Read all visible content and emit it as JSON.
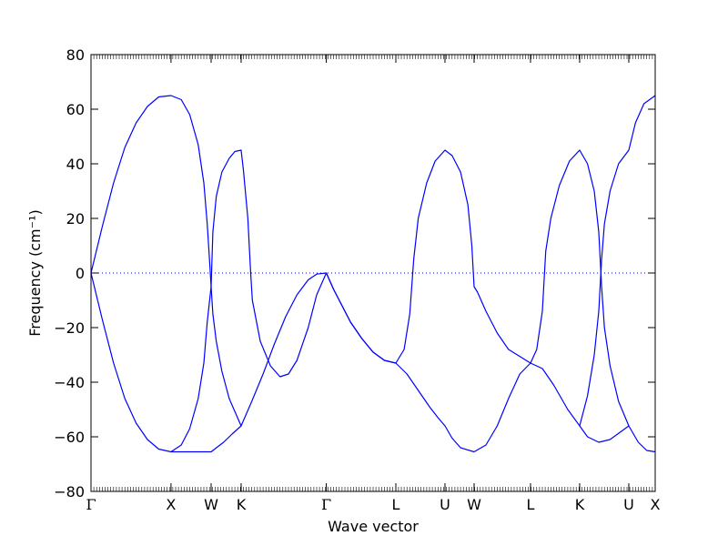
{
  "chart_data": {
    "type": "line",
    "title": "",
    "xlabel": "Wave vector",
    "ylabel": "Frequency (cm⁻¹)",
    "ylim": [
      -80,
      80
    ],
    "yticks": [
      -80,
      -60,
      -40,
      -20,
      0,
      20,
      40,
      60,
      80
    ],
    "ytick_labels": [
      "−80",
      "−60",
      "−40",
      "−20",
      "0",
      "20",
      "40",
      "60",
      "80"
    ],
    "xlim": [
      0,
      1
    ],
    "grid": false,
    "legend": "none",
    "line_color": "#0000ff",
    "zero_line": {
      "y": 0,
      "style": "dotted",
      "color": "#0000ff"
    },
    "xticks": [
      {
        "label": "Γ",
        "x": 0.0
      },
      {
        "label": "X",
        "x": 0.1418
      },
      {
        "label": "W",
        "x": 0.2129
      },
      {
        "label": "K",
        "x": 0.2661
      },
      {
        "label": "Γ",
        "x": 0.4171
      },
      {
        "label": "L",
        "x": 0.5403
      },
      {
        "label": "U",
        "x": 0.6274
      },
      {
        "label": "W",
        "x": 0.679
      },
      {
        "label": "L",
        "x": 0.779
      },
      {
        "label": "K",
        "x": 0.8661
      },
      {
        "label": "U",
        "x": 0.9532
      },
      {
        "label": "X",
        "x": 1.0
      }
    ],
    "series": [
      {
        "values": [
          [
            0.0,
            0
          ],
          [
            0.02,
            17
          ],
          [
            0.04,
            33
          ],
          [
            0.06,
            46
          ],
          [
            0.08,
            55
          ],
          [
            0.1,
            61
          ],
          [
            0.12,
            64.5
          ],
          [
            0.1418,
            65
          ],
          [
            0.16,
            63.5
          ],
          [
            0.175,
            58
          ],
          [
            0.19,
            47
          ],
          [
            0.2,
            33
          ],
          [
            0.206,
            18
          ],
          [
            0.21,
            5
          ],
          [
            0.2129,
            -5
          ],
          [
            0.216,
            -15
          ],
          [
            0.222,
            -25
          ],
          [
            0.232,
            -36
          ],
          [
            0.245,
            -46
          ],
          [
            0.2661,
            -56
          ],
          [
            0.285,
            -47
          ],
          [
            0.305,
            -37
          ],
          [
            0.325,
            -26
          ],
          [
            0.345,
            -16
          ],
          [
            0.365,
            -8
          ],
          [
            0.385,
            -2.5
          ],
          [
            0.4,
            -0.4
          ],
          [
            0.4171,
            0
          ],
          [
            0.43,
            -6
          ],
          [
            0.445,
            -12
          ],
          [
            0.46,
            -18
          ],
          [
            0.48,
            -24
          ],
          [
            0.5,
            -29
          ],
          [
            0.52,
            -32
          ],
          [
            0.5403,
            -33
          ],
          [
            0.56,
            -37
          ],
          [
            0.58,
            -43
          ],
          [
            0.6,
            -49
          ],
          [
            0.615,
            -53
          ],
          [
            0.6274,
            -56
          ],
          [
            0.64,
            -60.5
          ],
          [
            0.655,
            -64
          ],
          [
            0.679,
            -65.5
          ],
          [
            0.7,
            -63
          ],
          [
            0.72,
            -56
          ],
          [
            0.74,
            -46
          ],
          [
            0.76,
            -37
          ],
          [
            0.779,
            -33
          ],
          [
            0.8,
            -35
          ],
          [
            0.82,
            -41
          ],
          [
            0.845,
            -50
          ],
          [
            0.8661,
            -56
          ],
          [
            0.88,
            -60
          ],
          [
            0.9,
            -62
          ],
          [
            0.92,
            -61
          ],
          [
            0.94,
            -58
          ],
          [
            0.9532,
            -56
          ],
          [
            0.97,
            -62
          ],
          [
            0.985,
            -65
          ],
          [
            1.0,
            -65.5
          ]
        ]
      },
      {
        "values": [
          [
            0.0,
            0
          ],
          [
            0.02,
            -17
          ],
          [
            0.04,
            -33
          ],
          [
            0.06,
            -46
          ],
          [
            0.08,
            -55
          ],
          [
            0.1,
            -61
          ],
          [
            0.12,
            -64.5
          ],
          [
            0.1418,
            -65.5
          ],
          [
            0.17,
            -65.5
          ],
          [
            0.2129,
            -65.5
          ],
          [
            0.235,
            -62
          ],
          [
            0.25,
            -59
          ],
          [
            0.2661,
            -56
          ]
        ]
      },
      {
        "values": [
          [
            0.1418,
            -65.5
          ],
          [
            0.16,
            -63
          ],
          [
            0.175,
            -57
          ],
          [
            0.19,
            -46
          ],
          [
            0.2,
            -33
          ],
          [
            0.206,
            -18
          ],
          [
            0.2129,
            -5
          ],
          [
            0.216,
            15
          ],
          [
            0.222,
            28
          ],
          [
            0.232,
            37
          ],
          [
            0.245,
            42
          ],
          [
            0.255,
            44.5
          ],
          [
            0.2661,
            45
          ],
          [
            0.27,
            38
          ],
          [
            0.278,
            20
          ],
          [
            0.283,
            0
          ],
          [
            0.286,
            -10
          ],
          [
            0.3,
            -25
          ],
          [
            0.318,
            -34
          ],
          [
            0.335,
            -38
          ],
          [
            0.35,
            -37
          ],
          [
            0.365,
            -32
          ],
          [
            0.385,
            -20
          ],
          [
            0.4,
            -8
          ],
          [
            0.4171,
            0
          ]
        ]
      },
      {
        "values": [
          [
            0.4171,
            0
          ],
          [
            0.43,
            -6
          ],
          [
            0.445,
            -12
          ],
          [
            0.46,
            -18
          ],
          [
            0.48,
            -24
          ],
          [
            0.5,
            -29
          ],
          [
            0.52,
            -32
          ],
          [
            0.5403,
            -33
          ],
          [
            0.555,
            -28
          ],
          [
            0.565,
            -15
          ],
          [
            0.572,
            5
          ],
          [
            0.58,
            20
          ],
          [
            0.595,
            33
          ],
          [
            0.61,
            41
          ],
          [
            0.6274,
            45
          ],
          [
            0.64,
            43
          ],
          [
            0.655,
            37
          ],
          [
            0.668,
            25
          ],
          [
            0.675,
            10
          ],
          [
            0.679,
            -5
          ],
          [
            0.685,
            -7
          ],
          [
            0.7,
            -14
          ],
          [
            0.72,
            -22
          ],
          [
            0.74,
            -28
          ],
          [
            0.779,
            -33
          ],
          [
            0.79,
            -28
          ],
          [
            0.8,
            -14
          ],
          [
            0.806,
            8
          ],
          [
            0.815,
            20
          ],
          [
            0.83,
            32
          ],
          [
            0.848,
            41
          ],
          [
            0.8661,
            45
          ],
          [
            0.88,
            40
          ],
          [
            0.892,
            30
          ],
          [
            0.9,
            15
          ],
          [
            0.905,
            -5
          ],
          [
            0.91,
            -20
          ],
          [
            0.92,
            -34
          ],
          [
            0.935,
            -47
          ],
          [
            0.9532,
            -56
          ]
        ]
      },
      {
        "values": [
          [
            0.8661,
            -56
          ],
          [
            0.88,
            -45
          ],
          [
            0.892,
            -30
          ],
          [
            0.9,
            -14
          ],
          [
            0.905,
            5
          ],
          [
            0.91,
            18
          ],
          [
            0.92,
            30
          ],
          [
            0.935,
            40
          ],
          [
            0.9532,
            45
          ],
          [
            0.965,
            55
          ],
          [
            0.98,
            62
          ],
          [
            1.0,
            65
          ]
        ]
      }
    ]
  }
}
